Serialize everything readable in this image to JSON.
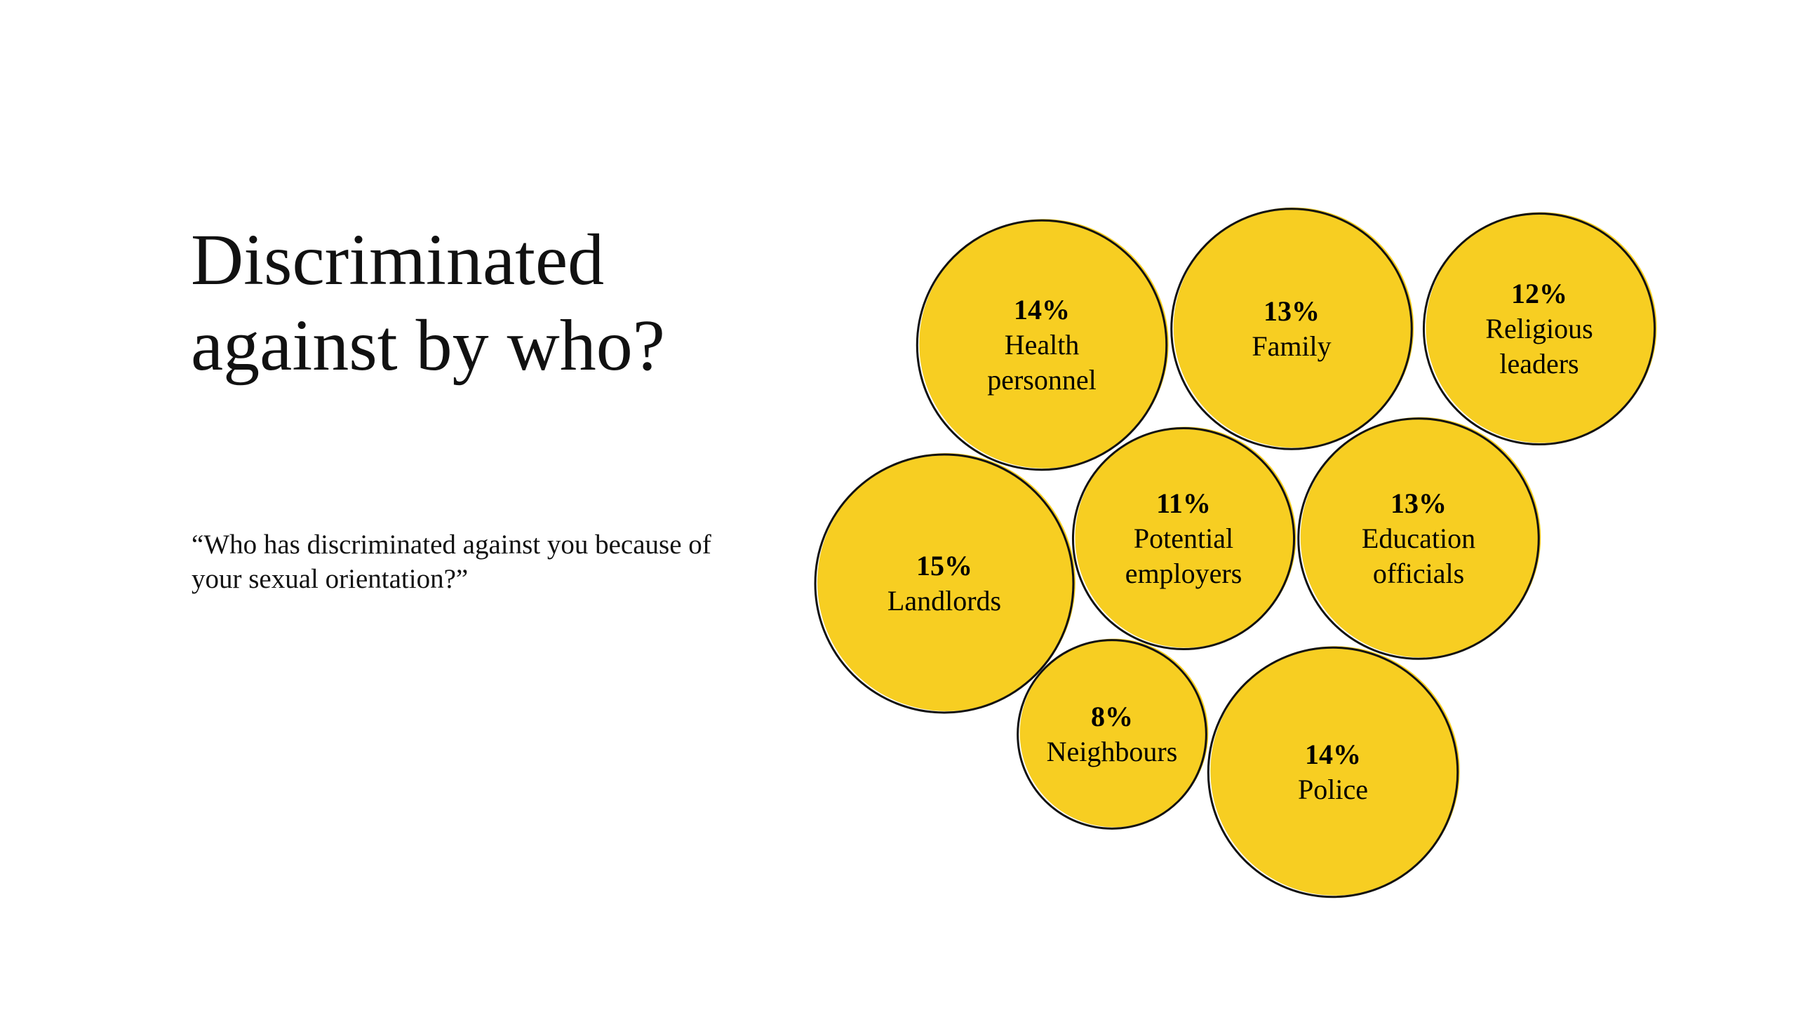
{
  "title": "Discriminated against by who?",
  "subtitle": "“Who has discriminated against you because of your sexual orientation?”",
  "colors": {
    "bubble": "#F7CE22",
    "outline": "#111111"
  },
  "chart_data": {
    "type": "bubble",
    "title": "Discriminated against by who?",
    "unit": "%",
    "items": [
      {
        "label": "Health personnel",
        "lines": [
          "Health",
          "personnel"
        ],
        "value": 14,
        "display": "14%"
      },
      {
        "label": "Family",
        "lines": [
          "Family"
        ],
        "value": 13,
        "display": "13%"
      },
      {
        "label": "Religious leaders",
        "lines": [
          "Religious",
          "leaders"
        ],
        "value": 12,
        "display": "12%"
      },
      {
        "label": "Landlords",
        "lines": [
          "Landlords"
        ],
        "value": 15,
        "display": "15%"
      },
      {
        "label": "Potential employers",
        "lines": [
          "Potential",
          "employers"
        ],
        "value": 11,
        "display": "11%"
      },
      {
        "label": "Education officials",
        "lines": [
          "Education",
          "officials"
        ],
        "value": 13,
        "display": "13%"
      },
      {
        "label": "Neighbours",
        "lines": [
          "Neighbours"
        ],
        "value": 8,
        "display": "8%"
      },
      {
        "label": "Police",
        "lines": [
          "Police"
        ],
        "value": 14,
        "display": "14%"
      }
    ]
  }
}
